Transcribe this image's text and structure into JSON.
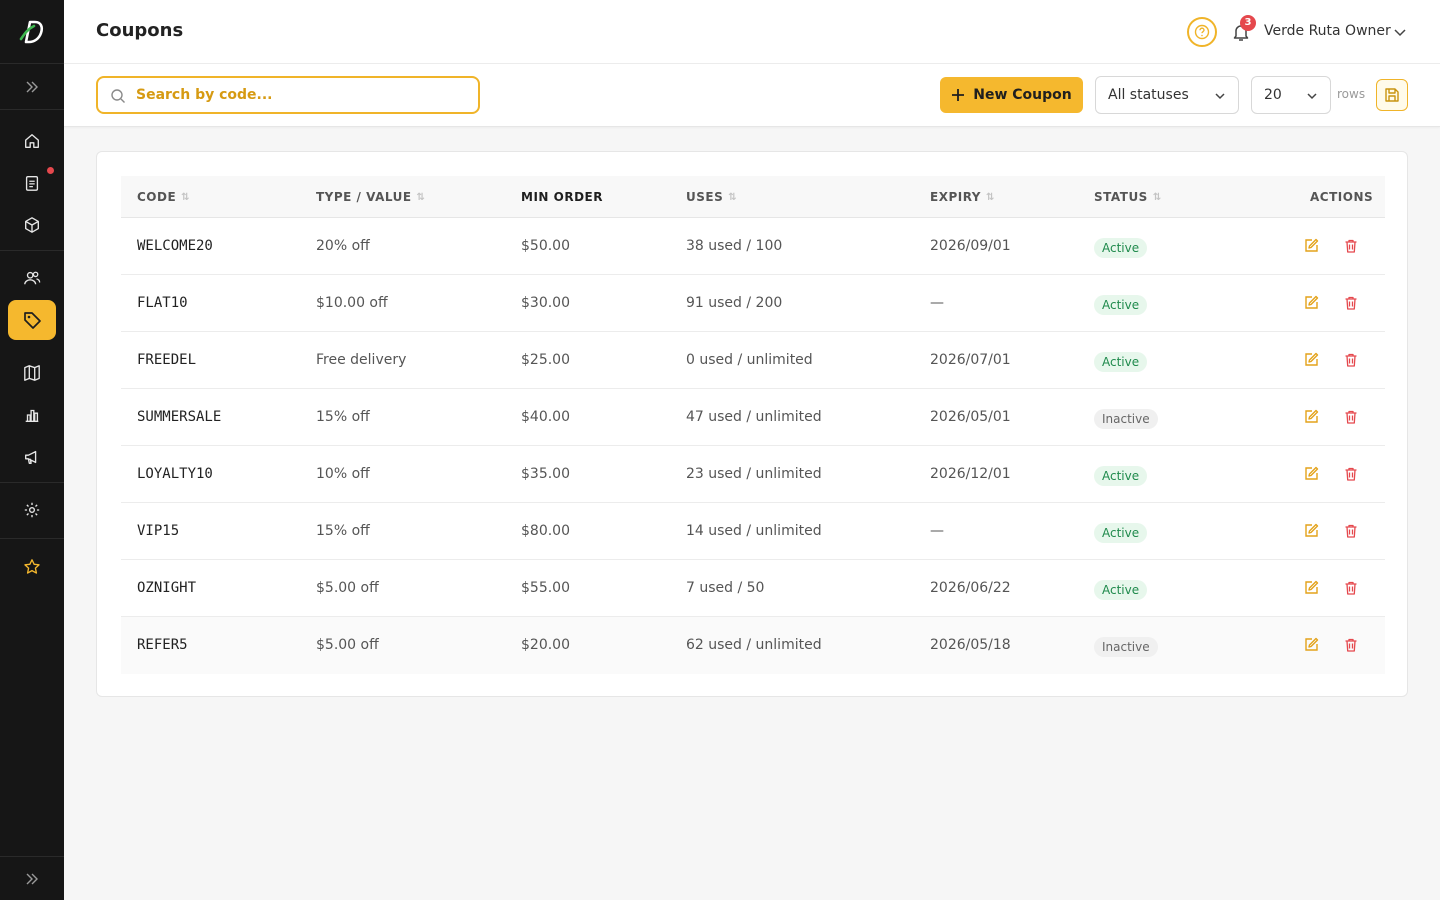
{
  "app": {
    "title": "Coupons"
  },
  "header": {
    "user_name": "Verde Ruta Owner",
    "notification_count": "3"
  },
  "toolbar": {
    "search_placeholder": "Search by code...",
    "new_coupon_label": "New Coupon",
    "status_filter": "All statuses",
    "rows_per_page": "20",
    "rows_label": "rows"
  },
  "table": {
    "headers": {
      "code": "CODE",
      "type_value": "TYPE / VALUE",
      "min_order": "MIN ORDER",
      "uses": "USES",
      "expiry": "EXPIRY",
      "status": "STATUS",
      "actions": "ACTIONS"
    },
    "rows": [
      {
        "code": "WELCOME20",
        "type_value": "20% off",
        "min_order": "$50.00",
        "uses": "38 used / 100",
        "expiry": "2026/09/01",
        "status": "Active"
      },
      {
        "code": "FLAT10",
        "type_value": "$10.00 off",
        "min_order": "$30.00",
        "uses": "91 used / 200",
        "expiry": "—",
        "status": "Active"
      },
      {
        "code": "FREEDEL",
        "type_value": "Free delivery",
        "min_order": "$25.00",
        "uses": "0 used / unlimited",
        "expiry": "2026/07/01",
        "status": "Active"
      },
      {
        "code": "SUMMERSALE",
        "type_value": "15% off",
        "min_order": "$40.00",
        "uses": "47 used / unlimited",
        "expiry": "2026/05/01",
        "status": "Inactive"
      },
      {
        "code": "LOYALTY10",
        "type_value": "10% off",
        "min_order": "$35.00",
        "uses": "23 used / unlimited",
        "expiry": "2026/12/01",
        "status": "Active"
      },
      {
        "code": "VIP15",
        "type_value": "15% off",
        "min_order": "$80.00",
        "uses": "14 used / unlimited",
        "expiry": "—",
        "status": "Active"
      },
      {
        "code": "OZNIGHT",
        "type_value": "$5.00 off",
        "min_order": "$55.00",
        "uses": "7 used / 50",
        "expiry": "2026/06/22",
        "status": "Active"
      },
      {
        "code": "REFER5",
        "type_value": "$5.00 off",
        "min_order": "$20.00",
        "uses": "62 used / unlimited",
        "expiry": "2026/05/18",
        "status": "Inactive"
      }
    ]
  },
  "colors": {
    "accent": "#f5b82e",
    "sidebar_bg": "#161616",
    "active_badge": "#1f8a4c",
    "delete_icon": "#e5484d"
  },
  "sidebar": {
    "items": [
      {
        "icon": "home-icon"
      },
      {
        "icon": "clipboard-icon"
      },
      {
        "icon": "box-icon"
      },
      {
        "icon": "users-icon"
      },
      {
        "icon": "tag-icon"
      },
      {
        "icon": "map-icon"
      },
      {
        "icon": "bar-chart-icon"
      },
      {
        "icon": "megaphone-icon"
      },
      {
        "icon": "gear-icon"
      },
      {
        "icon": "star-icon"
      }
    ]
  }
}
